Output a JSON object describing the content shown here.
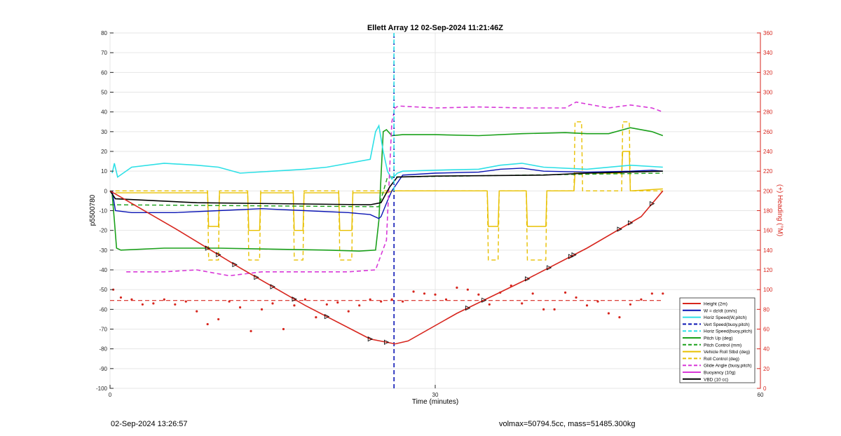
{
  "chart_data": {
    "type": "line",
    "title": "Ellett Array 12 02-Sep-2024 11:21:46Z",
    "xlabel": "Time (minutes)",
    "ylabel": "p5500780",
    "y2label": "(+) Heading (°M)",
    "xlim": [
      0,
      60
    ],
    "ylim": [
      -100,
      80
    ],
    "y2lim": [
      0,
      360
    ],
    "x_ticks": [
      "0",
      "30",
      "60"
    ],
    "y_ticks": [
      "80",
      "70",
      "60",
      "50",
      "40",
      "30",
      "20",
      "10",
      "0",
      "-10",
      "-20",
      "-30",
      "-40",
      "-50",
      "-60",
      "-70",
      "-80",
      "-90",
      "-100"
    ],
    "y2_ticks": [
      "360",
      "340",
      "320",
      "300",
      "280",
      "260",
      "240",
      "220",
      "200",
      "180",
      "160",
      "140",
      "120",
      "100",
      "80",
      "60",
      "40",
      "20",
      "0"
    ],
    "grid": true,
    "legend_position": "lower-right",
    "colors": {
      "red": "#d7261e",
      "blue": "#0a14b4",
      "cyan": "#2de0e6",
      "green": "#1aa01a",
      "yellow": "#e8c000",
      "magenta": "#d838d8",
      "black": "#000000",
      "axis_right": "#d7261e"
    },
    "legend": [
      {
        "label": "Height (2m)",
        "color": "#d7261e",
        "dash": false
      },
      {
        "label": "W = dz/dt (cm/s)",
        "color": "#0a14b4",
        "dash": false
      },
      {
        "label": "Horiz Speed(W,pitch)",
        "color": "#2de0e6",
        "dash": false
      },
      {
        "label": "Vert Speed(buoy,pitch)",
        "color": "#0a14b4",
        "dash": true
      },
      {
        "label": "Horiz Speed(buoy,pitch)",
        "color": "#2de0e6",
        "dash": true
      },
      {
        "label": "Pitch Up (deg)",
        "color": "#1aa01a",
        "dash": false
      },
      {
        "label": "Pitch Control (mm)",
        "color": "#1aa01a",
        "dash": true
      },
      {
        "label": "Vehicle Roll Stbd (deg)",
        "color": "#e8c000",
        "dash": false
      },
      {
        "label": "Roll Control (deg)",
        "color": "#e8c000",
        "dash": true
      },
      {
        "label": "Glide Angle (buoy,pitch)",
        "color": "#d838d8",
        "dash": true
      },
      {
        "label": "Buoyancy (10g)",
        "color": "#d838d8",
        "dash": false
      },
      {
        "label": "VBD (10 cc)",
        "color": "#000000",
        "dash": false
      }
    ],
    "series": [
      {
        "name": "Height (2m)",
        "x": [
          0,
          6,
          12,
          18,
          24,
          26.3,
          27.5,
          32,
          38,
          44,
          49,
          51
        ],
        "y": [
          0,
          -19,
          -39,
          -58,
          -75,
          -77.5,
          -76,
          -62,
          -46,
          -29,
          -13,
          0
        ]
      },
      {
        "name": "W = dz/dt (cm/s)",
        "x": [
          0.2,
          0.5,
          2,
          6,
          10,
          14,
          18,
          22,
          24,
          24.8,
          25,
          25.6,
          26,
          27,
          30,
          34,
          36,
          38,
          40,
          44,
          48,
          50,
          51
        ],
        "y": [
          0,
          -10,
          -11,
          -11,
          -10,
          -9,
          -10,
          -11,
          -12,
          -14,
          -13,
          -5,
          0,
          8,
          9,
          9.5,
          11,
          11.5,
          10,
          9.5,
          10,
          10.5,
          10
        ]
      },
      {
        "name": "Horiz Speed(W,pitch)",
        "x": [
          0.2,
          0.4,
          0.7,
          2,
          5,
          8,
          10,
          12,
          15,
          18,
          20,
          24,
          24.5,
          24.8,
          25.2,
          25.6,
          26,
          26.5,
          27,
          30,
          34,
          36,
          38,
          40,
          44,
          48,
          51
        ],
        "y": [
          9,
          14,
          7,
          12,
          14,
          13,
          12,
          9,
          10,
          11,
          12,
          16,
          30,
          33,
          20,
          10,
          6,
          9,
          10,
          10.5,
          11,
          13,
          14,
          12,
          11,
          13,
          12
        ]
      },
      {
        "name": "Vert Speed(buoy,pitch)",
        "x": [
          26.2,
          26.2
        ],
        "y": [
          -100,
          80
        ]
      },
      {
        "name": "Horiz Speed(buoy,pitch)",
        "x": [
          26.2,
          26.2
        ],
        "y": [
          0,
          80
        ]
      },
      {
        "name": "Pitch Up (deg)",
        "x": [
          0.2,
          0.4,
          0.6,
          1,
          5,
          10,
          15,
          20,
          23,
          24.5,
          24.8,
          25.2,
          25.5,
          26,
          27,
          30,
          34,
          38,
          42,
          44,
          46,
          48,
          50,
          51
        ],
        "y": [
          -2,
          -15,
          -29,
          -30,
          -29,
          -29,
          -29.5,
          -30,
          -30.5,
          -30,
          -15,
          30,
          31,
          28,
          28.5,
          28.5,
          28,
          29,
          29.5,
          29,
          29,
          32,
          30,
          28
        ]
      },
      {
        "name": "Pitch Control (mm)",
        "x": [
          0,
          24.8,
          25.6,
          51
        ],
        "y": [
          -7,
          -8,
          7,
          9
        ]
      },
      {
        "name": "Vehicle Roll Stbd (deg)",
        "x": [
          0.5,
          9,
          9.1,
          10,
          10.1,
          12.7,
          12.8,
          13.8,
          13.9,
          16.9,
          17,
          17.8,
          17.9,
          21.1,
          21.2,
          22.3,
          22.4,
          25.6,
          26,
          34.8,
          34.9,
          35.8,
          35.9,
          38.4,
          38.5,
          40.2,
          40.3,
          42.8,
          42.9,
          47.2,
          47.3,
          47.9,
          48,
          51
        ],
        "y": [
          -1,
          -1,
          -18,
          -18,
          -1,
          -1,
          -20,
          -20,
          -1,
          -1,
          -20,
          -20,
          -1,
          -1,
          -20,
          -20,
          -1,
          -1,
          0,
          0,
          -18,
          -18,
          0,
          0,
          -18,
          -18,
          0,
          0,
          9,
          9,
          20,
          20,
          0,
          1
        ]
      }
    ],
    "roll_control_x": [
      0.5,
      9,
      9.1,
      10,
      10.1,
      12.7,
      12.8,
      13.8,
      13.9,
      16.9,
      17,
      17.8,
      17.9,
      21.1,
      21.2,
      22.3,
      22.4,
      25.6,
      26,
      34.8,
      34.9,
      35.8,
      35.9,
      38.4,
      38.5,
      40.2,
      40.3,
      42.8,
      42.9,
      43.5,
      43.6,
      47.2,
      47.3,
      47.9,
      48,
      51
    ],
    "roll_control_y": [
      0,
      0,
      -35,
      -35,
      0,
      0,
      -35,
      -35,
      0,
      0,
      -35,
      -35,
      0,
      0,
      -35,
      -35,
      0,
      0,
      0,
      0,
      -35,
      -35,
      0,
      0,
      -35,
      -35,
      0,
      0,
      35,
      35,
      0,
      0,
      35,
      35,
      0,
      0
    ],
    "glide_x": [
      1.5,
      5,
      8,
      11,
      14,
      18,
      22,
      24.5,
      25.5,
      26,
      26.3,
      26.6,
      30,
      34,
      38,
      42,
      43,
      46,
      48,
      50,
      51
    ],
    "glide_y": [
      -41,
      -41,
      -40,
      -43,
      -41,
      -41,
      -41,
      -40,
      -25,
      35,
      42,
      43,
      42,
      42.5,
      42,
      42,
      45,
      42,
      43.5,
      42,
      40
    ],
    "vbd_x": [
      0,
      0.5,
      8,
      24,
      25,
      25.8,
      26.5,
      30,
      40,
      44,
      51
    ],
    "vbd_y": [
      0,
      -4,
      -6,
      -7,
      -6,
      2,
      7,
      7.5,
      8,
      9,
      10
    ],
    "heading_mean": 89,
    "heading_x": [
      0.3,
      1,
      2,
      3,
      4,
      5,
      6,
      7,
      8,
      9,
      10,
      11,
      12,
      13,
      14,
      15,
      16,
      17,
      18,
      19,
      20,
      21,
      22,
      23,
      24,
      25,
      26,
      27,
      28,
      29,
      30,
      31,
      32,
      33,
      34,
      35,
      36,
      37,
      38,
      39,
      40,
      41,
      42,
      43,
      44,
      45,
      46,
      47,
      48,
      49,
      50,
      51
    ],
    "heading_y": [
      100,
      92,
      90,
      85,
      86,
      90,
      85,
      88,
      78,
      65,
      70,
      88,
      82,
      58,
      80,
      86,
      60,
      84,
      90,
      72,
      85,
      87,
      78,
      84,
      90,
      88,
      90,
      88,
      98,
      96,
      95,
      90,
      102,
      100,
      95,
      85,
      97,
      104,
      86,
      96,
      80,
      80,
      97,
      92,
      84,
      88,
      76,
      72,
      85,
      90,
      96,
      96
    ]
  },
  "footer": {
    "left_text": "02-Sep-2024 13:26:57",
    "right_text": "volmax=50794.5cc, mass=51485.300kg"
  }
}
